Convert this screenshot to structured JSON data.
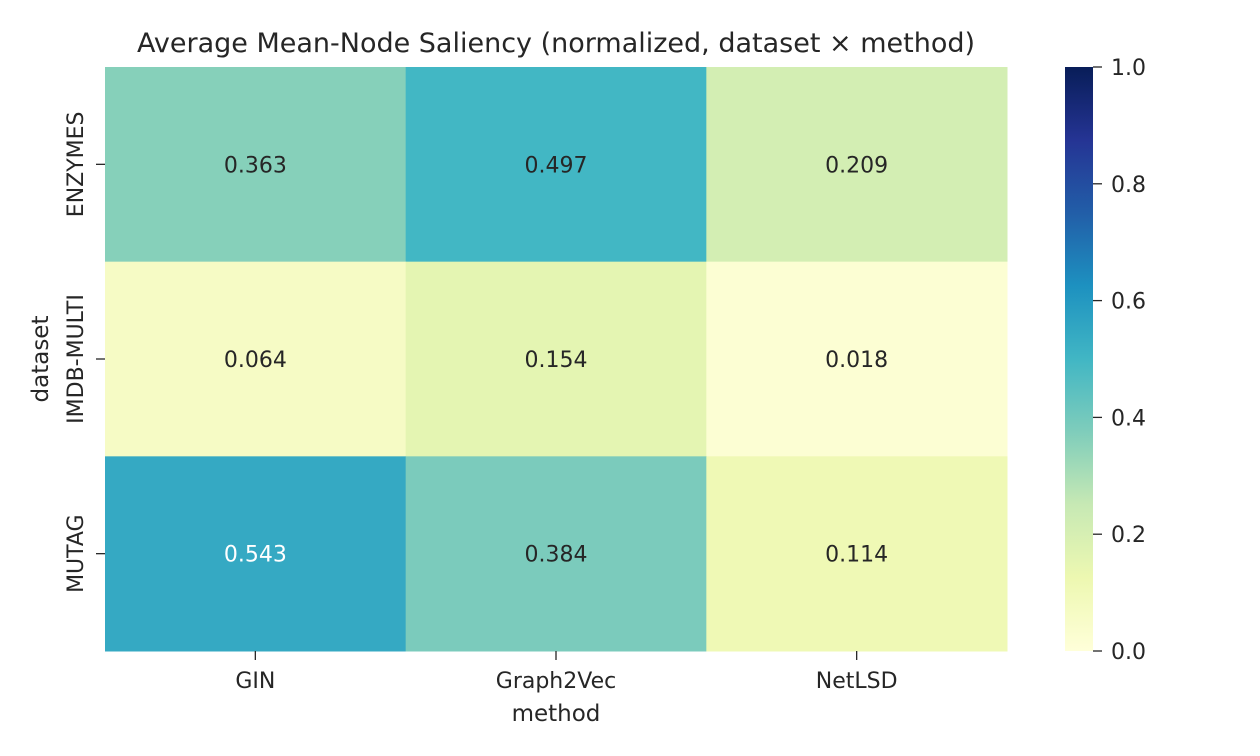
{
  "chart_data": {
    "type": "heatmap",
    "title": "Average Mean-Node Saliency (normalized, dataset × method)",
    "xlabel": "method",
    "ylabel": "dataset",
    "x_categories": [
      "GIN",
      "Graph2Vec",
      "NetLSD"
    ],
    "y_categories": [
      "ENZYMES",
      "IMDB-MULTI",
      "MUTAG"
    ],
    "values": [
      [
        0.363,
        0.497,
        0.209
      ],
      [
        0.064,
        0.154,
        0.018
      ],
      [
        0.543,
        0.384,
        0.114
      ]
    ],
    "value_labels": [
      [
        "0.363",
        "0.497",
        "0.209"
      ],
      [
        "0.064",
        "0.154",
        "0.018"
      ],
      [
        "0.543",
        "0.384",
        "0.114"
      ]
    ],
    "colormap": "YlGnBu",
    "colorbar": {
      "range": [
        0.0,
        1.0
      ],
      "ticks": [
        0.0,
        0.2,
        0.4,
        0.6,
        0.8,
        1.0
      ],
      "tick_labels": [
        "0.0",
        "0.2",
        "0.4",
        "0.6",
        "0.8",
        "1.0"
      ]
    },
    "colors": {
      "label_dark": "#262626",
      "label_light": "#ffffff"
    }
  }
}
